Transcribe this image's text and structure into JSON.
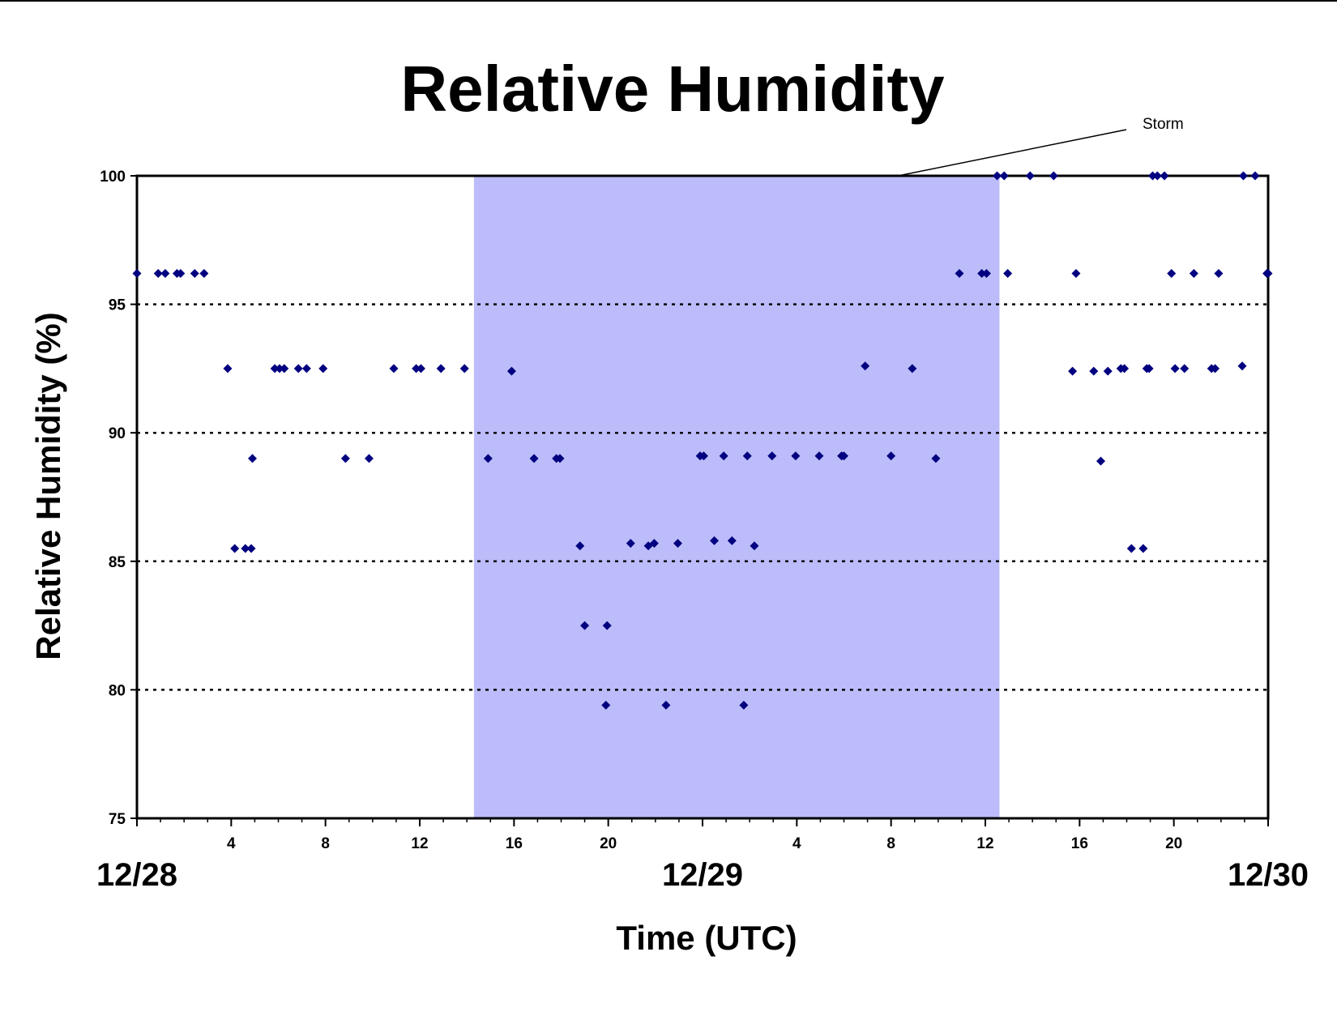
{
  "chart_data": {
    "type": "scatter",
    "title": "Relative Humidity",
    "xlabel": "Time (UTC)",
    "ylabel": "Relative Humidity (%)",
    "ylim": [
      75,
      100
    ],
    "yticks": [
      75,
      80,
      85,
      90,
      95,
      100
    ],
    "gridlines": [
      80,
      85,
      90,
      95
    ],
    "grid_style": "dotted horizontal",
    "xlim_hours": [
      0,
      48
    ],
    "hour_ticks": [
      {
        "h": 0,
        "label": ""
      },
      {
        "h": 4,
        "label": "4"
      },
      {
        "h": 8,
        "label": "8"
      },
      {
        "h": 12,
        "label": "12"
      },
      {
        "h": 16,
        "label": "16"
      },
      {
        "h": 20,
        "label": "20"
      },
      {
        "h": 24,
        "label": ""
      },
      {
        "h": 28,
        "label": "4"
      },
      {
        "h": 32,
        "label": "8"
      },
      {
        "h": 36,
        "label": "12"
      },
      {
        "h": 40,
        "label": "16"
      },
      {
        "h": 44,
        "label": "20"
      },
      {
        "h": 48,
        "label": ""
      }
    ],
    "date_labels": [
      {
        "h": 0,
        "label": "12/28"
      },
      {
        "h": 24,
        "label": "12/29"
      },
      {
        "h": 48,
        "label": "12/30"
      }
    ],
    "shaded_region": {
      "from_h": 14.3,
      "to_h": 36.6,
      "color": "#bcbcfa"
    },
    "annotation": {
      "text": "Storm",
      "points_to_h": 32.3
    },
    "marker_color": "#000080",
    "series": [
      {
        "points": [
          [
            0.0,
            96.2
          ],
          [
            0.9,
            96.2
          ],
          [
            1.2,
            96.2
          ],
          [
            1.7,
            96.2
          ],
          [
            1.85,
            96.2
          ],
          [
            2.45,
            96.2
          ],
          [
            2.85,
            96.2
          ],
          [
            3.85,
            92.5
          ],
          [
            4.15,
            85.5
          ],
          [
            4.6,
            85.5
          ],
          [
            4.85,
            85.5
          ],
          [
            4.9,
            89.0
          ],
          [
            5.85,
            92.5
          ],
          [
            6.05,
            92.5
          ],
          [
            6.25,
            92.5
          ],
          [
            6.85,
            92.5
          ],
          [
            7.2,
            92.5
          ],
          [
            7.9,
            92.5
          ],
          [
            8.85,
            89.0
          ],
          [
            9.85,
            89.0
          ],
          [
            10.9,
            92.5
          ],
          [
            11.85,
            92.5
          ],
          [
            12.05,
            92.5
          ],
          [
            12.9,
            92.5
          ],
          [
            13.9,
            92.5
          ],
          [
            14.9,
            89.0
          ],
          [
            15.9,
            92.4
          ],
          [
            16.85,
            89.0
          ],
          [
            17.8,
            89.0
          ],
          [
            17.95,
            89.0
          ],
          [
            18.8,
            85.6
          ],
          [
            19.0,
            82.5
          ],
          [
            19.9,
            79.4
          ],
          [
            19.95,
            82.5
          ],
          [
            20.95,
            85.7
          ],
          [
            21.7,
            85.6
          ],
          [
            21.95,
            85.7
          ],
          [
            22.45,
            79.4
          ],
          [
            22.95,
            85.7
          ],
          [
            23.9,
            89.1
          ],
          [
            24.05,
            89.1
          ],
          [
            24.5,
            85.8
          ],
          [
            24.9,
            89.1
          ],
          [
            25.25,
            85.8
          ],
          [
            25.75,
            79.4
          ],
          [
            25.9,
            89.1
          ],
          [
            26.2,
            85.6
          ],
          [
            26.95,
            89.1
          ],
          [
            27.95,
            89.1
          ],
          [
            28.95,
            89.1
          ],
          [
            29.9,
            89.1
          ],
          [
            30.0,
            89.1
          ],
          [
            30.9,
            92.6
          ],
          [
            32.0,
            89.1
          ],
          [
            32.9,
            92.5
          ],
          [
            33.9,
            89.0
          ],
          [
            34.9,
            96.2
          ],
          [
            35.85,
            96.2
          ],
          [
            36.05,
            96.2
          ],
          [
            36.5,
            100.0
          ],
          [
            36.8,
            100.0
          ],
          [
            36.95,
            96.2
          ],
          [
            37.9,
            100.0
          ],
          [
            38.9,
            100.0
          ],
          [
            39.7,
            92.4
          ],
          [
            39.85,
            96.2
          ],
          [
            40.6,
            92.4
          ],
          [
            40.9,
            88.9
          ],
          [
            41.2,
            92.4
          ],
          [
            41.75,
            92.5
          ],
          [
            41.9,
            92.5
          ],
          [
            42.2,
            85.5
          ],
          [
            42.7,
            85.5
          ],
          [
            42.85,
            92.5
          ],
          [
            42.95,
            92.5
          ],
          [
            43.1,
            100.0
          ],
          [
            43.3,
            100.0
          ],
          [
            43.6,
            100.0
          ],
          [
            43.9,
            96.2
          ],
          [
            44.05,
            92.5
          ],
          [
            44.45,
            92.5
          ],
          [
            44.85,
            96.2
          ],
          [
            45.6,
            92.5
          ],
          [
            45.75,
            92.5
          ],
          [
            45.9,
            96.2
          ],
          [
            46.9,
            92.6
          ],
          [
            46.95,
            100.0
          ],
          [
            47.45,
            100.0
          ],
          [
            47.95,
            96.2
          ],
          [
            48.0,
            96.2
          ]
        ]
      }
    ]
  }
}
